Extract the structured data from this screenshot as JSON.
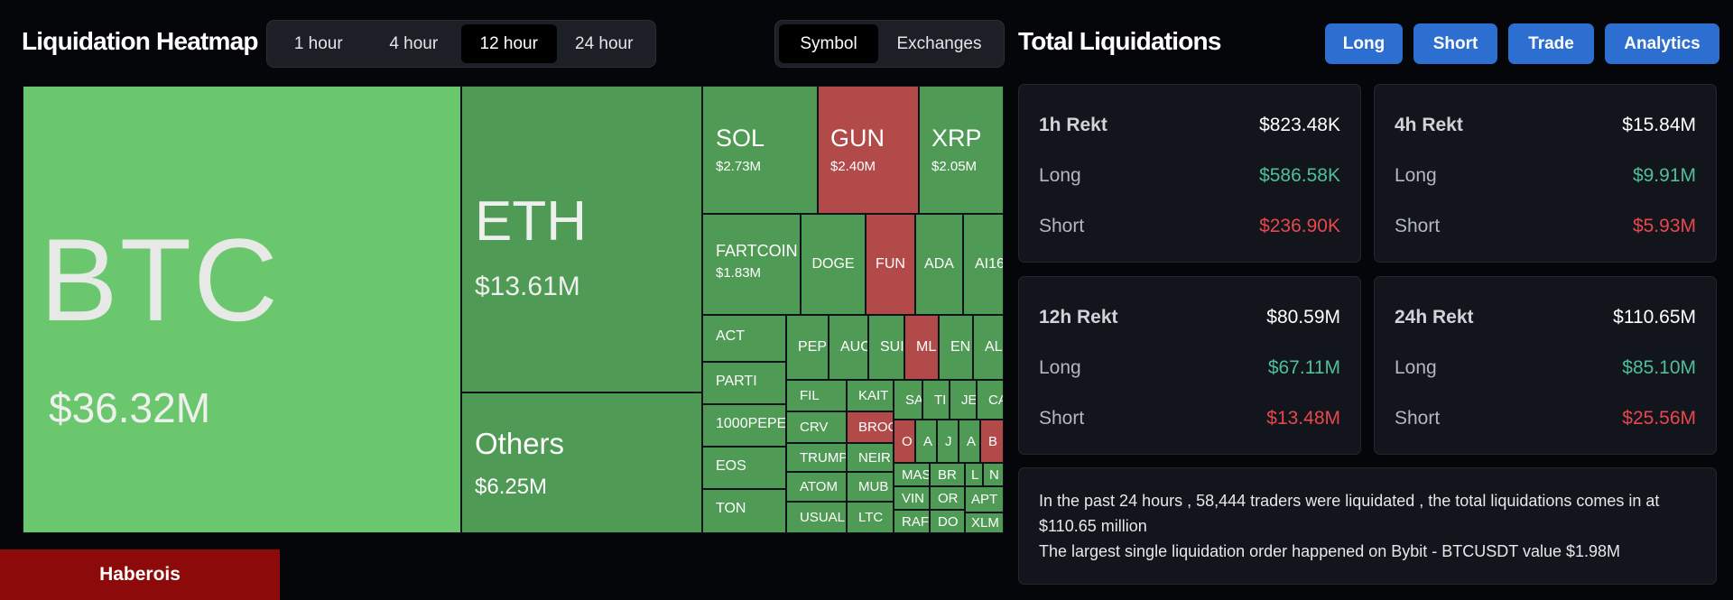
{
  "heatmap": {
    "title": "Liquidation Heatmap",
    "time_options": [
      "1 hour",
      "4 hour",
      "12 hour",
      "24 hour"
    ],
    "view_options": [
      "Symbol",
      "Exchanges"
    ],
    "tiles": {
      "btc": {
        "symbol": "BTC",
        "value": "$36.32M"
      },
      "eth": {
        "symbol": "ETH",
        "value": "$13.61M"
      },
      "others": {
        "symbol": "Others",
        "value": "$6.25M"
      },
      "sol": {
        "symbol": "SOL",
        "value": "$2.73M"
      },
      "gun": {
        "symbol": "GUN",
        "value": "$2.40M"
      },
      "xrp": {
        "symbol": "XRP",
        "value": "$2.05M"
      },
      "fartcoin": {
        "symbol": "FARTCOIN",
        "value": "$1.83M"
      },
      "doge": "DOGE",
      "fun": "FUN",
      "ada": "ADA",
      "ai16": "AI16",
      "act": "ACT",
      "parti": "PARTI",
      "pepe1000": "1000PEPE",
      "eos": "EOS",
      "ton": "TON",
      "pep": "PEP",
      "auc": "AUC",
      "sui": "SUI",
      "ml": "ML",
      "en": "EN",
      "al": "AL",
      "fil": "FIL",
      "kait": "KAIT",
      "sa": "SA",
      "ti": "TI",
      "je": "JE",
      "ca": "CA",
      "crv": "CRV",
      "broc": "BROC",
      "o": "O",
      "a1": "A",
      "j": "J",
      "a2": "A",
      "b": "B",
      "trump": "TRUMP",
      "neir": "NEIR",
      "atom": "ATOM",
      "mub": "MUB",
      "mas": "MAS",
      "br": "BR",
      "l": "L",
      "n": "N",
      "usual": "USUAL",
      "ltc": "LTC",
      "vin": "VIN",
      "or": "OR",
      "apt": "APT",
      "raf": "RAF",
      "do": "DO",
      "xlm": "XLM"
    }
  },
  "badge": "Haberois",
  "total": {
    "title": "Total Liquidations",
    "buttons": [
      "Long",
      "Short",
      "Trade",
      "Analytics"
    ],
    "cards": [
      {
        "label": "1h Rekt",
        "total": "$823.48K",
        "long_label": "Long",
        "long": "$586.58K",
        "short_label": "Short",
        "short": "$236.90K"
      },
      {
        "label": "4h Rekt",
        "total": "$15.84M",
        "long_label": "Long",
        "long": "$9.91M",
        "short_label": "Short",
        "short": "$5.93M"
      },
      {
        "label": "12h Rekt",
        "total": "$80.59M",
        "long_label": "Long",
        "long": "$67.11M",
        "short_label": "Short",
        "short": "$13.48M"
      },
      {
        "label": "24h Rekt",
        "total": "$110.65M",
        "long_label": "Long",
        "long": "$85.10M",
        "short_label": "Short",
        "short": "$25.56M"
      }
    ],
    "summary_line1": "In the past 24 hours , 58,444 traders were liquidated , the total liquidations comes in at $110.65 million",
    "summary_line2": "The largest single liquidation order happened on Bybit - BTCUSDT value $1.98M"
  },
  "colors": {
    "green_light": "#6bc76d",
    "green": "#559d5a",
    "red": "#b24a49",
    "accent": "#2d6fd1",
    "positive": "#4fbf9a",
    "negative": "#e8474e"
  }
}
